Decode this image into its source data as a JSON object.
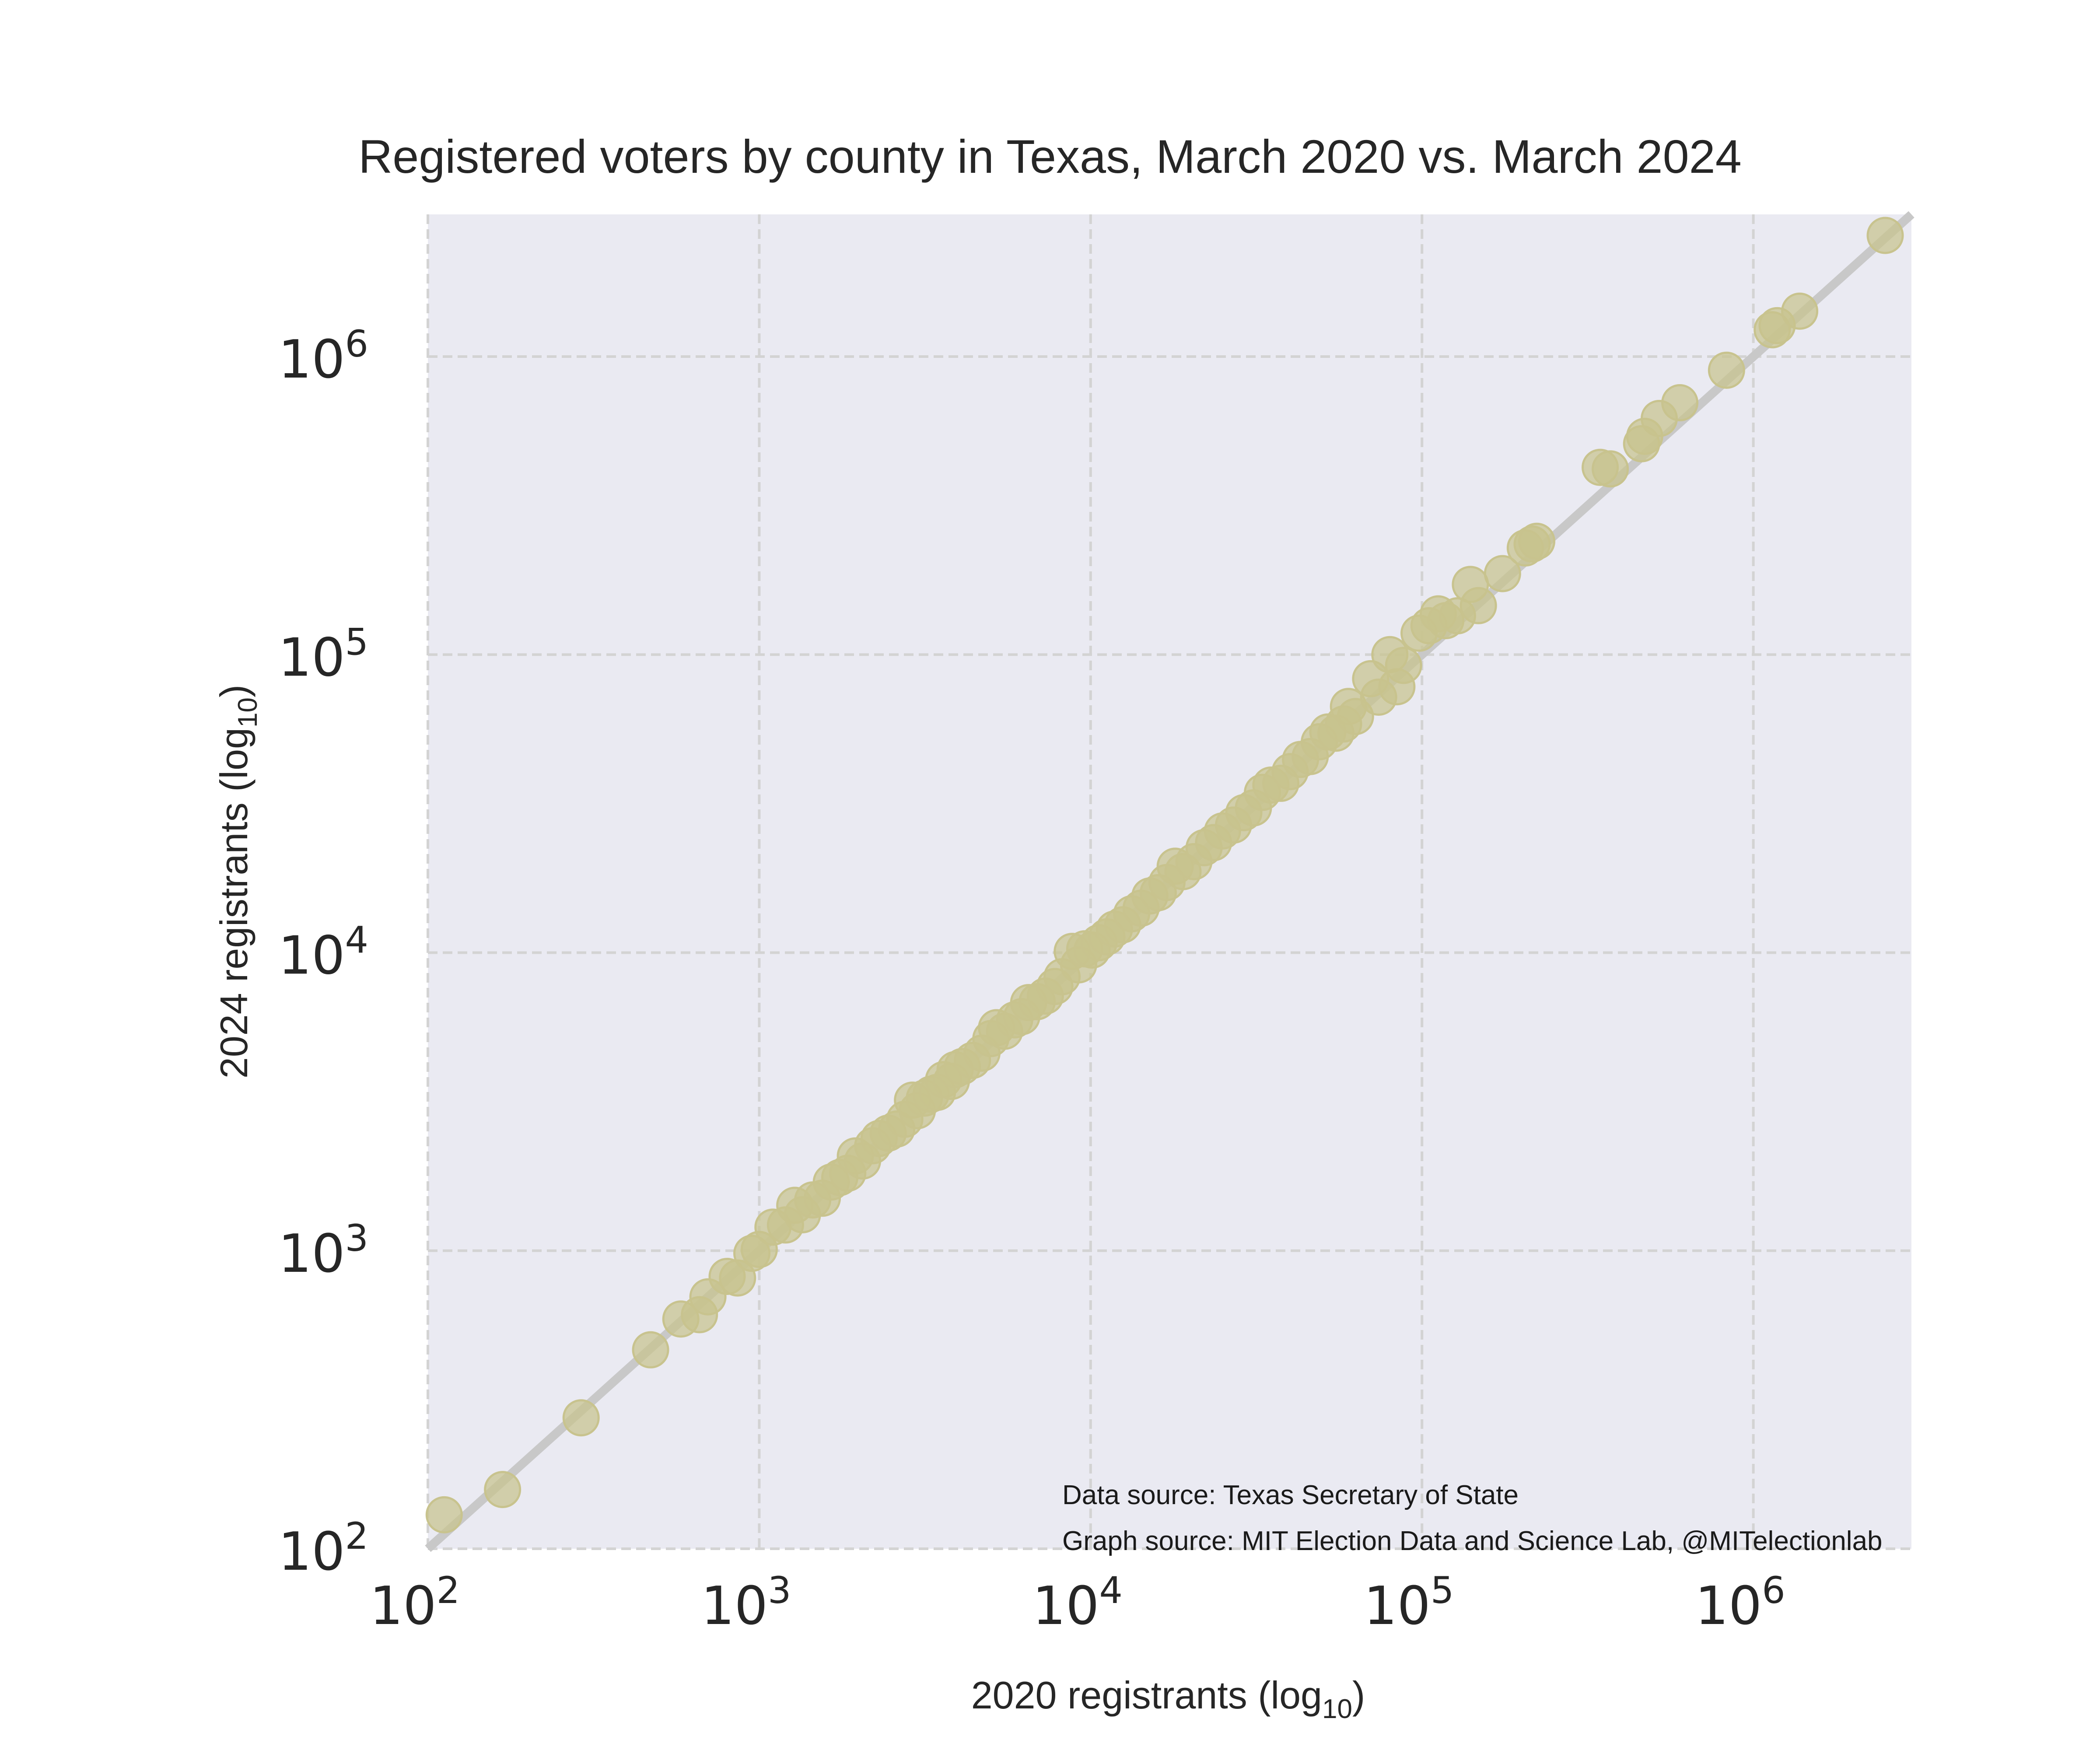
{
  "chart_data": {
    "type": "scatter",
    "title": "Registered voters by county in Texas, March 2020 vs. March 2024",
    "xlabel": "2020 registrants (log10)",
    "ylabel": "2024 registrants (log10)",
    "xscale": "log",
    "yscale": "log",
    "xlim": [
      100,
      3000000
    ],
    "ylim": [
      100,
      3000000
    ],
    "x_ticks": [
      {
        "base": "10",
        "exp": "2"
      },
      {
        "base": "10",
        "exp": "3"
      },
      {
        "base": "10",
        "exp": "4"
      },
      {
        "base": "10",
        "exp": "5"
      },
      {
        "base": "10",
        "exp": "6"
      }
    ],
    "y_ticks": [
      {
        "base": "10",
        "exp": "2"
      },
      {
        "base": "10",
        "exp": "3"
      },
      {
        "base": "10",
        "exp": "4"
      },
      {
        "base": "10",
        "exp": "5"
      },
      {
        "base": "10",
        "exp": "6"
      }
    ],
    "grid": true,
    "reference_line": "y = x",
    "colors": {
      "background": "#eaeaf2",
      "grid": "#d3d3d3",
      "points": "#c8c38e",
      "reference_line": "#c8c8c8"
    },
    "annotations": [
      "Data source: Texas Secretary of State",
      "Graph source: MIT Election Data and Science Lab, @MITelectionlab"
    ],
    "points": [
      [
        112,
        130
      ],
      [
        168,
        158
      ],
      [
        290,
        275
      ],
      [
        470,
        465
      ],
      [
        580,
        590
      ],
      [
        660,
        610
      ],
      [
        700,
        700
      ],
      [
        800,
        820
      ],
      [
        860,
        810
      ],
      [
        950,
        980
      ],
      [
        1000,
        1010
      ],
      [
        1100,
        1200
      ],
      [
        1200,
        1220
      ],
      [
        1280,
        1420
      ],
      [
        1350,
        1320
      ],
      [
        1450,
        1480
      ],
      [
        1550,
        1500
      ],
      [
        1650,
        1700
      ],
      [
        1750,
        1760
      ],
      [
        1850,
        1820
      ],
      [
        1950,
        2080
      ],
      [
        2050,
        2000
      ],
      [
        2200,
        2250
      ],
      [
        2300,
        2380
      ],
      [
        2450,
        2480
      ],
      [
        2600,
        2560
      ],
      [
        2750,
        2760
      ],
      [
        2900,
        3200
      ],
      [
        3000,
        2950
      ],
      [
        3150,
        3250
      ],
      [
        3300,
        3350
      ],
      [
        3450,
        3400
      ],
      [
        3600,
        3750
      ],
      [
        3800,
        3700
      ],
      [
        3900,
        4050
      ],
      [
        4100,
        4150
      ],
      [
        4400,
        4350
      ],
      [
        4700,
        4600
      ],
      [
        5000,
        5150
      ],
      [
        5200,
        5600
      ],
      [
        5500,
        5450
      ],
      [
        5900,
        5950
      ],
      [
        6200,
        6100
      ],
      [
        6500,
        6800
      ],
      [
        6900,
        6850
      ],
      [
        7300,
        7150
      ],
      [
        7800,
        7700
      ],
      [
        8200,
        8300
      ],
      [
        8800,
        10100
      ],
      [
        9200,
        9100
      ],
      [
        9600,
        10300
      ],
      [
        10100,
        10200
      ],
      [
        10600,
        10800
      ],
      [
        11200,
        11300
      ],
      [
        11800,
        12000
      ],
      [
        12500,
        12400
      ],
      [
        13300,
        13500
      ],
      [
        14200,
        14100
      ],
      [
        15100,
        15500
      ],
      [
        16000,
        15900
      ],
      [
        17000,
        17200
      ],
      [
        18000,
        19500
      ],
      [
        19000,
        18700
      ],
      [
        20500,
        20200
      ],
      [
        22000,
        22500
      ],
      [
        23500,
        23400
      ],
      [
        25000,
        25600
      ],
      [
        27000,
        26800
      ],
      [
        29000,
        29500
      ],
      [
        31000,
        30600
      ],
      [
        33000,
        34500
      ],
      [
        35000,
        36500
      ],
      [
        37500,
        37000
      ],
      [
        40000,
        40500
      ],
      [
        43000,
        44500
      ],
      [
        46000,
        45500
      ],
      [
        49000,
        51000
      ],
      [
        52000,
        55000
      ],
      [
        55000,
        54500
      ],
      [
        58000,
        58500
      ],
      [
        60000,
        67000
      ],
      [
        63000,
        62000
      ],
      [
        70000,
        83000
      ],
      [
        74000,
        72000
      ],
      [
        80000,
        100000
      ],
      [
        84000,
        78000
      ],
      [
        88000,
        92000
      ],
      [
        98000,
        118000
      ],
      [
        105000,
        125000
      ],
      [
        112000,
        137000
      ],
      [
        118000,
        130000
      ],
      [
        128000,
        135000
      ],
      [
        140000,
        172000
      ],
      [
        148000,
        146000
      ],
      [
        175000,
        187000
      ],
      [
        205000,
        228000
      ],
      [
        215000,
        235000
      ],
      [
        222000,
        240000
      ],
      [
        345000,
        425000
      ],
      [
        370000,
        420000
      ],
      [
        460000,
        510000
      ],
      [
        470000,
        540000
      ],
      [
        520000,
        620000
      ],
      [
        600000,
        700000
      ],
      [
        830000,
        900000
      ],
      [
        1140000,
        1230000
      ],
      [
        1180000,
        1270000
      ],
      [
        1380000,
        1420000
      ],
      [
        2500000,
        2550000
      ]
    ]
  }
}
